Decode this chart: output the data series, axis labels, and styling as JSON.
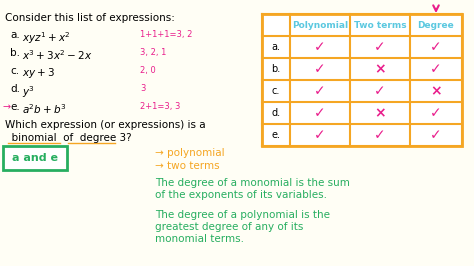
{
  "bg_color": "#fffef5",
  "title_text": "Consider this list of expressions:",
  "expressions": [
    {
      "label": "a.",
      "expr": "xyz¹ + x²",
      "note": "1+1+1=3,  2"
    },
    {
      "label": "b.",
      "expr": "x³ + 3x² - 2x",
      "note": "3,  2, 1"
    },
    {
      "label": "c.",
      "expr": "xy + 3",
      "note": "2,  0"
    },
    {
      "label": "d.",
      "expr": "y³",
      "note": "3"
    },
    {
      "label": "e.",
      "expr": "a²b + b³",
      "note": "2+1=3,  3"
    }
  ],
  "table": {
    "headers": [
      "",
      "Polynomial",
      "Two terms",
      "Degree"
    ],
    "rows": [
      [
        "a.",
        true,
        true,
        true
      ],
      [
        "b.",
        true,
        false,
        true
      ],
      [
        "c.",
        true,
        true,
        false
      ],
      [
        "d.",
        true,
        false,
        true
      ],
      [
        "e.",
        true,
        true,
        true
      ]
    ]
  },
  "question_text": "Which expression (or expressions) is a  binomial  of  degree 3?",
  "answer_text": "a and e",
  "bullet1": "→ polynomial",
  "bullet2": "→ two terms",
  "def1_line1": "The degree of a monomial is the sum",
  "def1_line2": "of the exponents of its variables.",
  "def2_line1": "The degree of a polynomial is the",
  "def2_line2": "greatest degree of any of its",
  "def2_line3": "monomial terms.",
  "orange": "#f5a623",
  "blue": "#5bc8e0",
  "pink": "#e91e8c",
  "green": "#2ecc71",
  "dark_green": "#27ae60",
  "answer_box_color": "#2ecc71",
  "check_color": "#e91e8c",
  "cross_color": "#e91e8c",
  "arrow_color": "#e91489"
}
